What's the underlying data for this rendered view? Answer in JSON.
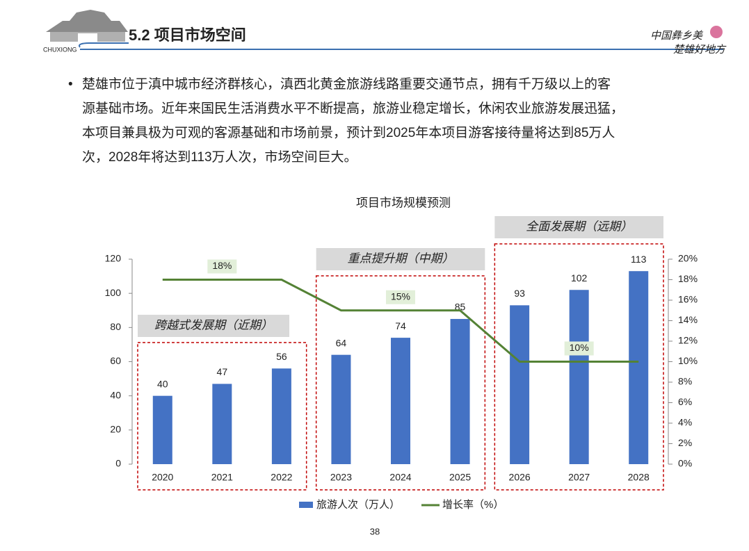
{
  "header": {
    "logo_text": "CHUXIONG",
    "title": "5.2 项目市场空间",
    "slogan": [
      "中国彝乡美",
      "楚雄好地方"
    ]
  },
  "body": {
    "lines": [
      "楚雄市位于滇中城市经济群核心，滇西北黄金旅游线路重要交通节点，拥有千万级以上的客",
      "源基础市场。近年来国民生活消费水平不断提高，旅游业稳定增长，休闲农业旅游发展迅猛，",
      "本项目兼具极为可观的客源基础和市场前景，预计到2025年本项目游客接待量将达到85万人",
      "次，2028年将达到113万人次，市场空间巨大。"
    ]
  },
  "chart_data": {
    "type": "bar-line",
    "title": "项目市场规模预测",
    "categories": [
      "2020",
      "2021",
      "2022",
      "2023",
      "2024",
      "2025",
      "2026",
      "2027",
      "2028"
    ],
    "series": [
      {
        "name": "旅游人次（万人）",
        "color": "#4472c4",
        "values": [
          40,
          47,
          56,
          64,
          74,
          85,
          93,
          102,
          113
        ]
      },
      {
        "name": "增长率（%）",
        "color": "#548235",
        "axis": "y2",
        "values": [
          18,
          18,
          18,
          15,
          15,
          15,
          10,
          10,
          10
        ],
        "value_labels": [
          null,
          "18%",
          null,
          null,
          "15%",
          null,
          null,
          "10%",
          null
        ]
      }
    ],
    "ylim": [
      0,
      120
    ],
    "yticks": [
      0,
      20,
      40,
      60,
      80,
      100,
      120
    ],
    "y2lim": [
      0,
      20
    ],
    "y2ticks": [
      {
        "value": 0,
        "label": "0%"
      },
      {
        "value": 2,
        "label": "2%"
      },
      {
        "value": 4,
        "label": "4%"
      },
      {
        "value": 6,
        "label": "6%"
      },
      {
        "value": 8,
        "label": "8%"
      },
      {
        "value": 10,
        "label": "10%"
      },
      {
        "value": 12,
        "label": "12%"
      },
      {
        "value": 14,
        "label": "14%"
      },
      {
        "value": 16,
        "label": "16%"
      },
      {
        "value": 18,
        "label": "18%"
      },
      {
        "value": 20,
        "label": "20%"
      }
    ],
    "phases": [
      "跨越式发展期（近期）",
      "重点提升期（中期）",
      "全面发展期（远期）"
    ]
  },
  "page_number": "38"
}
